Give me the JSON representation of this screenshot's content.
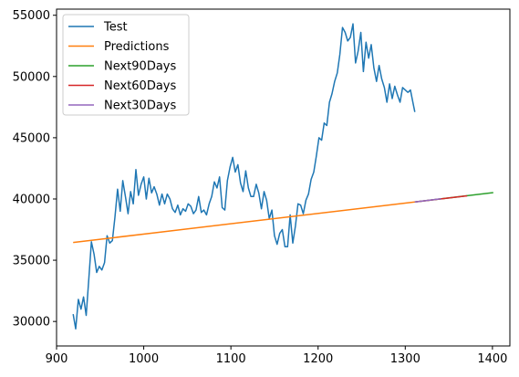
{
  "chart_data": {
    "type": "line",
    "title": "",
    "xlabel": "",
    "ylabel": "",
    "xlim": [
      900,
      1420
    ],
    "ylim": [
      28000,
      55500
    ],
    "grid": false,
    "legend_placement": "top-left",
    "x_ticks": [
      900,
      1000,
      1100,
      1200,
      1300,
      1400
    ],
    "y_ticks": [
      30000,
      35000,
      40000,
      45000,
      50000,
      55000
    ],
    "series": [
      {
        "name": "Test",
        "color": "#1f77b4",
        "x": [
          919,
          922,
          925,
          928,
          931,
          934,
          937,
          940,
          943,
          946,
          949,
          952,
          955,
          958,
          961,
          964,
          967,
          970,
          973,
          976,
          979,
          982,
          985,
          988,
          991,
          994,
          997,
          1000,
          1003,
          1006,
          1009,
          1012,
          1015,
          1018,
          1021,
          1024,
          1027,
          1030,
          1033,
          1036,
          1039,
          1042,
          1045,
          1048,
          1051,
          1054,
          1057,
          1060,
          1063,
          1066,
          1069,
          1072,
          1075,
          1078,
          1081,
          1084,
          1087,
          1090,
          1093,
          1096,
          1099,
          1102,
          1105,
          1108,
          1111,
          1114,
          1117,
          1120,
          1123,
          1126,
          1129,
          1132,
          1135,
          1138,
          1141,
          1144,
          1147,
          1150,
          1153,
          1156,
          1159,
          1162,
          1165,
          1168,
          1171,
          1174,
          1177,
          1180,
          1183,
          1186,
          1189,
          1192,
          1195,
          1198,
          1201,
          1204,
          1207,
          1210,
          1213,
          1216,
          1219,
          1222,
          1225,
          1228,
          1231,
          1234,
          1237,
          1240,
          1243,
          1246,
          1249,
          1252,
          1255,
          1258,
          1261,
          1264,
          1267,
          1270,
          1273,
          1276,
          1279,
          1282,
          1285,
          1288,
          1291,
          1294,
          1297,
          1300,
          1303,
          1306,
          1309,
          1311
        ],
        "values": [
          30600,
          29400,
          31800,
          31000,
          32000,
          30500,
          33500,
          36500,
          35500,
          34000,
          34500,
          34200,
          34800,
          37000,
          36400,
          36600,
          38500,
          40800,
          39000,
          41500,
          40200,
          38800,
          40600,
          39600,
          42400,
          40300,
          41200,
          41800,
          40000,
          41700,
          40500,
          41000,
          40400,
          39500,
          40400,
          39600,
          40400,
          40000,
          39200,
          38900,
          39500,
          38700,
          39200,
          39000,
          39600,
          39400,
          38800,
          39100,
          40200,
          38900,
          39100,
          38700,
          39600,
          40200,
          41400,
          40900,
          41800,
          39300,
          39100,
          41500,
          42600,
          43400,
          42200,
          42800,
          41300,
          40600,
          42300,
          40900,
          40200,
          40200,
          41200,
          40500,
          39200,
          40600,
          39900,
          38400,
          39100,
          37000,
          36300,
          37200,
          37500,
          36100,
          36100,
          38700,
          36400,
          37800,
          39600,
          39500,
          38800,
          39900,
          40400,
          41600,
          42200,
          43500,
          45000,
          44800,
          46200,
          46000,
          47900,
          48600,
          49600,
          50300,
          51800,
          54000,
          53600,
          52900,
          53200,
          54300,
          51100,
          52100,
          53600,
          50400,
          52800,
          51500,
          52600,
          50700,
          49600,
          50900,
          49800,
          49100,
          47900,
          49400,
          48200,
          49200,
          48500,
          47900,
          49100,
          48900,
          48700,
          48900,
          47800,
          47100
        ],
        "data_name": "series-test-line"
      },
      {
        "name": "Predictions",
        "color": "#ff7f0e",
        "x": [
          919,
          1311
        ],
        "values": [
          36450,
          39750
        ],
        "data_name": "series-predictions-line"
      },
      {
        "name": "Next90Days",
        "color": "#2ca02c",
        "x": [
          1311,
          1401
        ],
        "values": [
          39750,
          40520
        ],
        "data_name": "series-next90days-line"
      },
      {
        "name": "Next60Days",
        "color": "#d62728",
        "x": [
          1311,
          1371
        ],
        "values": [
          39750,
          40260
        ],
        "data_name": "series-next60days-line"
      },
      {
        "name": "Next30Days",
        "color": "#9467bd",
        "x": [
          1311,
          1341
        ],
        "values": [
          39750,
          40010
        ],
        "data_name": "series-next30days-line"
      }
    ]
  }
}
